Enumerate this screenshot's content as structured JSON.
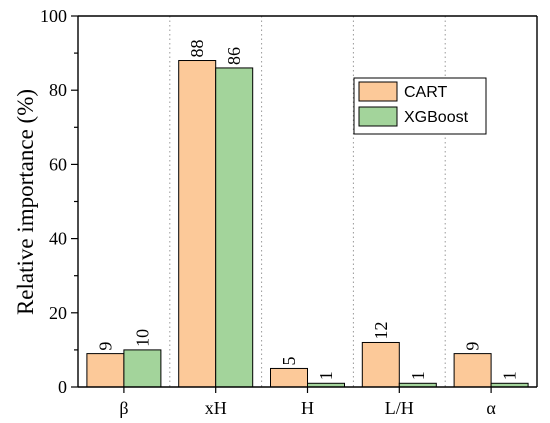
{
  "chart_data": {
    "type": "bar",
    "title": "",
    "xlabel": "",
    "ylabel": "Relative importance (%)",
    "categories": [
      "β",
      "xH",
      "H",
      "L/H",
      "α"
    ],
    "ylim": [
      0,
      100
    ],
    "yticks": [
      0,
      20,
      40,
      60,
      80,
      100
    ],
    "grid": false,
    "legend_position": "top-right",
    "series": [
      {
        "name": "CART",
        "values": [
          9,
          88,
          5,
          12,
          9
        ],
        "color": "#FCC999"
      },
      {
        "name": "XGBoost",
        "values": [
          10,
          86,
          1,
          1,
          1
        ],
        "color": "#A3D49B"
      }
    ]
  }
}
